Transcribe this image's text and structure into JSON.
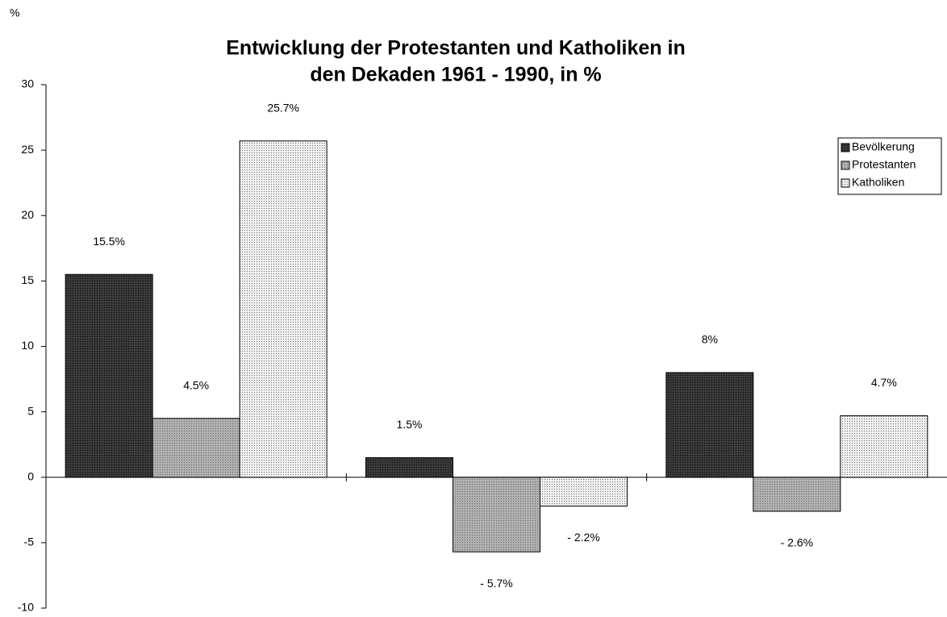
{
  "chart_data": {
    "type": "bar",
    "title": [
      "Entwicklung der Protestanten und Katholiken in",
      "den Dekaden 1961 - 1990, in %"
    ],
    "y_label": "%",
    "categories": [
      null,
      null,
      null
    ],
    "series": [
      {
        "name": "Bevölkerung",
        "color": "#3a3a3a",
        "values": [
          15.5,
          1.5,
          8
        ],
        "value_labels": [
          "15.5%",
          "1.5%",
          "8%"
        ]
      },
      {
        "name": "Protestanten",
        "color": "#b0b0b0",
        "values": [
          4.5,
          -5.7,
          -2.6
        ],
        "value_labels": [
          "4.5%",
          "- 5.7%",
          "- 2.6%"
        ]
      },
      {
        "name": "Katholiken",
        "color": "#f0f0f0",
        "values": [
          25.7,
          -2.2,
          4.7
        ],
        "value_labels": [
          "25.7%",
          "- 2.2%",
          "4.7%"
        ]
      }
    ],
    "ylim": [
      -10,
      30
    ],
    "yticks": [
      -10,
      -5,
      0,
      5,
      10,
      15,
      20,
      25,
      30
    ],
    "grid": false,
    "legend": "upper right"
  }
}
